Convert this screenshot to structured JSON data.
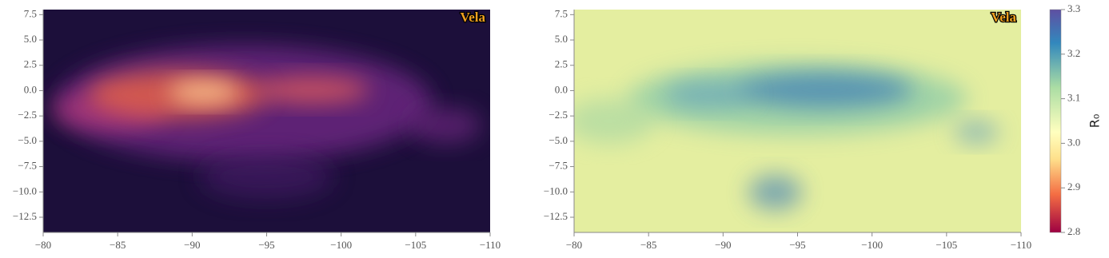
{
  "chart_data": [
    {
      "type": "heatmap",
      "cmap": "magma",
      "annotation": "Vela",
      "xlim": [
        -80,
        -110
      ],
      "xticks": [
        {
          "value": -80,
          "label": "−80"
        },
        {
          "value": -85,
          "label": "−85"
        },
        {
          "value": -90,
          "label": "−90"
        },
        {
          "value": -95,
          "label": "−95"
        },
        {
          "value": -100,
          "label": "−100"
        },
        {
          "value": -105,
          "label": "−105"
        },
        {
          "value": -110,
          "label": "−110"
        }
      ],
      "ylim": [
        -14,
        8
      ],
      "yticks": [
        {
          "value": 7.5,
          "label": "7.5"
        },
        {
          "value": 5,
          "label": "5.0"
        },
        {
          "value": 2.5,
          "label": "2.5"
        },
        {
          "value": 0,
          "label": "0.0"
        },
        {
          "value": -2.5,
          "label": "−2.5"
        },
        {
          "value": -5,
          "label": "−5.0"
        },
        {
          "value": -7.5,
          "label": "−7.5"
        },
        {
          "value": -10,
          "label": "−10.0"
        },
        {
          "value": -12.5,
          "label": "−12.5"
        }
      ]
    },
    {
      "type": "heatmap",
      "cmap": "Spectral",
      "annotation": "Vela",
      "xlim": [
        -80,
        -110
      ],
      "xticks": [
        {
          "value": -80,
          "label": "−80"
        },
        {
          "value": -85,
          "label": "−85"
        },
        {
          "value": -90,
          "label": "−90"
        },
        {
          "value": -95,
          "label": "−95"
        },
        {
          "value": -100,
          "label": "−100"
        },
        {
          "value": -105,
          "label": "−105"
        },
        {
          "value": -110,
          "label": "−110"
        }
      ],
      "ylim": [
        -14,
        8
      ],
      "yticks": [
        {
          "value": 7.5,
          "label": "7.5"
        },
        {
          "value": 5,
          "label": "5.0"
        },
        {
          "value": 2.5,
          "label": "2.5"
        },
        {
          "value": 0,
          "label": "0.0"
        },
        {
          "value": -2.5,
          "label": "−2.5"
        },
        {
          "value": -5,
          "label": "−5.0"
        },
        {
          "value": -7.5,
          "label": "−7.5"
        },
        {
          "value": -10,
          "label": "−10.0"
        },
        {
          "value": -12.5,
          "label": "−12.5"
        }
      ],
      "colorbar": {
        "label": "R₀",
        "lim": [
          2.8,
          3.3
        ],
        "ticks": [
          {
            "value": 2.8,
            "label": "2.8"
          },
          {
            "value": 2.9,
            "label": "2.9"
          },
          {
            "value": 3,
            "label": "3.0"
          },
          {
            "value": 3.1,
            "label": "3.1"
          },
          {
            "value": 3.2,
            "label": "3.2"
          },
          {
            "value": 3.3,
            "label": "3.3"
          }
        ]
      }
    }
  ]
}
